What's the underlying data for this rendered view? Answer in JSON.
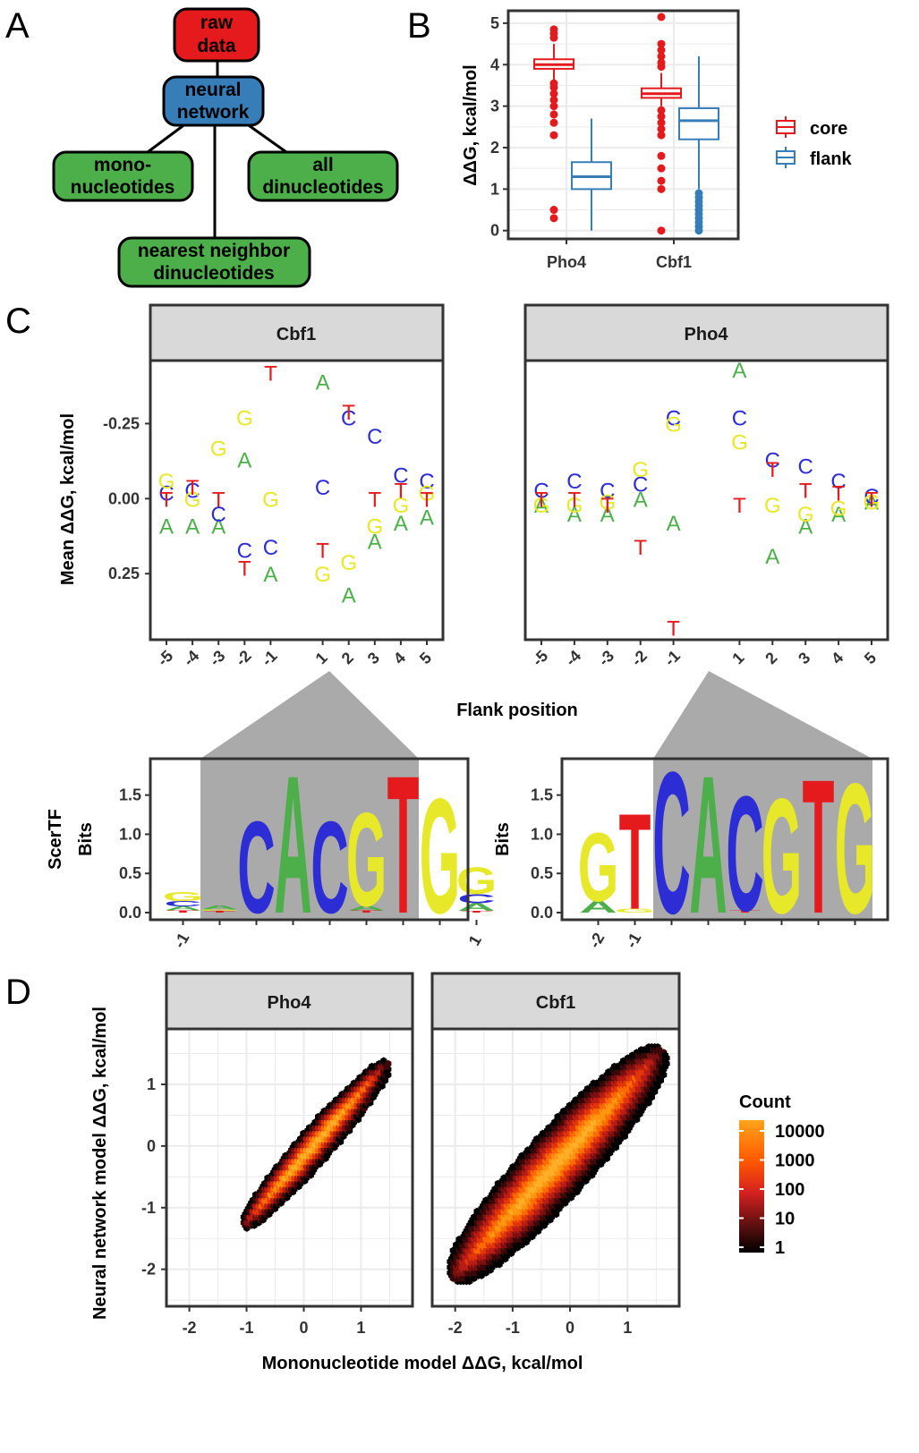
{
  "panels": {
    "A": "A",
    "B": "B",
    "C": "C",
    "D": "D"
  },
  "colors": {
    "core": "#e41a1c",
    "flank": "#377eb8",
    "A": "#4daf4a",
    "C": "#2d2dd6",
    "G": "#e8e82a",
    "T": "#e41a1c",
    "node_raw": "#e41a1c",
    "node_nn": "#377eb8",
    "node_green": "#4daf4a"
  },
  "diagram": {
    "nodes": {
      "raw": [
        "raw",
        "data"
      ],
      "nn": [
        "neural",
        "network"
      ],
      "mono": [
        "mono-",
        "nucleotides"
      ],
      "all": [
        "all",
        "dinucleotides"
      ],
      "nearest": [
        "nearest neighbor",
        "dinucleotides"
      ]
    }
  },
  "chart_data": [
    {
      "id": "B",
      "type": "box",
      "xlabel": "",
      "ylabel": "ΔΔG, kcal/mol",
      "ylim": [
        -0.2,
        5.3
      ],
      "yticks": [
        "0",
        "1",
        "2",
        "3",
        "4",
        "5"
      ],
      "categories": [
        "Pho4",
        "Cbf1"
      ],
      "legend": {
        "position": "right",
        "entries": [
          "core",
          "flank"
        ]
      },
      "series": [
        {
          "name": "core",
          "boxes": [
            {
              "cat": "Pho4",
              "whislo": 3.6,
              "q1": 3.9,
              "med": 4.0,
              "q3": 4.13,
              "whishi": 4.5,
              "outliers": [
                4.85,
                4.75,
                4.65,
                3.55,
                3.45,
                3.3,
                3.15,
                3.0,
                2.8,
                2.6,
                2.3,
                0.5,
                0.3
              ]
            },
            {
              "cat": "Cbf1",
              "whislo": 3.0,
              "q1": 3.2,
              "med": 3.3,
              "q3": 3.43,
              "whishi": 3.8,
              "outliers": [
                5.15,
                4.5,
                4.35,
                4.2,
                4.05,
                3.95,
                2.9,
                2.75,
                2.6,
                2.45,
                2.3,
                1.8,
                1.5,
                1.2,
                1.0,
                0.0
              ]
            }
          ]
        },
        {
          "name": "flank",
          "boxes": [
            {
              "cat": "Pho4",
              "whislo": 0.0,
              "q1": 1.0,
              "med": 1.3,
              "q3": 1.65,
              "whishi": 2.7,
              "outliers": []
            },
            {
              "cat": "Cbf1",
              "whislo": 1.0,
              "q1": 2.2,
              "med": 2.65,
              "q3": 2.95,
              "whishi": 4.2,
              "outliers": [
                0.9,
                0.8,
                0.7,
                0.6,
                0.5,
                0.4,
                0.3,
                0.2,
                0.1,
                0.0
              ]
            }
          ]
        }
      ]
    },
    {
      "id": "C",
      "type": "text-scatter",
      "xlabel": "Flank position",
      "ylabel": "Mean ΔΔG, kcal/mol",
      "y_reversed": true,
      "ylim": [
        -0.46,
        0.47
      ],
      "yticks": [
        "-0.25",
        "0.00",
        "0.25"
      ],
      "xticks": [
        "-5",
        "-4",
        "-3",
        "-2",
        "-1",
        "1",
        "2",
        "3",
        "4",
        "5"
      ],
      "facets": [
        {
          "title": "Cbf1",
          "points": {
            "A": [
              0.09,
              0.09,
              0.09,
              -0.13,
              0.25,
              -0.39,
              0.32,
              0.14,
              0.08,
              0.06
            ],
            "C": [
              -0.02,
              -0.03,
              0.05,
              0.17,
              0.16,
              -0.04,
              -0.27,
              -0.21,
              -0.08,
              -0.06
            ],
            "G": [
              -0.06,
              0.0,
              -0.17,
              -0.27,
              0.0,
              0.25,
              0.21,
              0.09,
              0.02,
              -0.02
            ],
            "T": [
              0.0,
              -0.04,
              0.0,
              0.23,
              -0.42,
              0.17,
              -0.29,
              0.0,
              -0.03,
              0.0
            ]
          }
        },
        {
          "title": "Pho4",
          "points": {
            "A": [
              0.02,
              0.05,
              0.05,
              0.0,
              0.08,
              -0.43,
              0.19,
              0.09,
              0.05,
              0.01
            ],
            "C": [
              -0.03,
              -0.06,
              -0.03,
              -0.05,
              -0.27,
              -0.27,
              -0.13,
              -0.11,
              -0.06,
              -0.01
            ],
            "G": [
              0.02,
              0.02,
              0.01,
              -0.1,
              -0.25,
              -0.19,
              0.02,
              0.05,
              0.03,
              0.01
            ],
            "T": [
              0.0,
              0.0,
              0.02,
              0.16,
              0.43,
              0.02,
              -0.1,
              -0.03,
              -0.02,
              0.0
            ]
          }
        }
      ]
    },
    {
      "id": "C-logo",
      "type": "sequence-logo",
      "row_label": "ScerTF",
      "ylabel": "Bits",
      "yticks": [
        "0.0",
        "0.5",
        "1.0",
        "1.5"
      ],
      "ylim": [
        0,
        1.9
      ],
      "logos": [
        {
          "tf": "Cbf1",
          "xticks": [
            "-1",
            "1"
          ],
          "columns": [
            [
              [
                "T",
                0.03
              ],
              [
                "A",
                0.05
              ],
              [
                "C",
                0.07
              ],
              [
                "G",
                0.12
              ]
            ],
            [
              [
                "T",
                0.02
              ],
              [
                "G",
                0.02
              ],
              [
                "A",
                0.05
              ]
            ],
            [
              [
                "C",
                1.2
              ]
            ],
            [
              [
                "A",
                1.8
              ]
            ],
            [
              [
                "C",
                1.2
              ]
            ],
            [
              [
                "T",
                0.03
              ],
              [
                "A",
                0.06
              ],
              [
                "G",
                1.22
              ]
            ],
            [
              [
                "T",
                1.8
              ]
            ],
            [
              [
                "G",
                1.5
              ]
            ],
            [
              [
                "T",
                0.02
              ],
              [
                "A",
                0.1
              ],
              [
                "C",
                0.12
              ],
              [
                "G",
                0.35
              ]
            ]
          ]
        },
        {
          "tf": "Pho4",
          "xticks": [
            "-2",
            "-1"
          ],
          "columns": [
            [
              [
                "A",
                0.15
              ],
              [
                "G",
                0.9
              ]
            ],
            [
              [
                "G",
                0.05
              ],
              [
                "T",
                1.25
              ]
            ],
            [
              [
                "C",
                1.85
              ]
            ],
            [
              [
                "A",
                1.8
              ]
            ],
            [
              [
                "T",
                0.03
              ],
              [
                "C",
                1.5
              ]
            ],
            [
              [
                "G",
                1.5
              ]
            ],
            [
              [
                "T",
                1.75
              ]
            ],
            [
              [
                "G",
                1.7
              ]
            ]
          ]
        }
      ]
    },
    {
      "id": "D",
      "type": "hexbin",
      "xlabel": "Mononucleotide model ΔΔG, kcal/mol",
      "ylabel": "Neural network model ΔΔG, kcal/mol",
      "xlim": [
        -2.4,
        1.9
      ],
      "ylim": [
        -2.6,
        1.9
      ],
      "xticks": [
        "-2",
        "-1",
        "0",
        "1"
      ],
      "yticks": [
        "-2",
        "-1",
        "0",
        "1"
      ],
      "legend": {
        "title": "Count",
        "position": "right",
        "scale": "log10",
        "labels": [
          "10000",
          "1000",
          "100",
          "10",
          "1"
        ]
      },
      "facets": [
        {
          "title": "Pho4",
          "spine": [
            [
              -1.05,
              -1.3
            ],
            [
              1.45,
              1.35
            ]
          ],
          "width": 0.28
        },
        {
          "title": "Cbf1",
          "spine": [
            [
              -2.05,
              -2.15
            ],
            [
              1.6,
              1.55
            ]
          ],
          "width": 0.55
        }
      ]
    }
  ]
}
